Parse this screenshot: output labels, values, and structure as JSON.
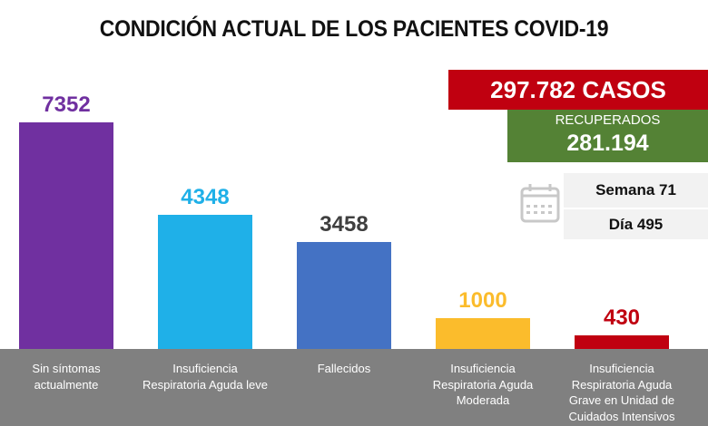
{
  "header": {
    "title": "CONDICIÓN ACTUAL DE LOS PACIENTES COVID-19"
  },
  "summary": {
    "casos": "297.782 CASOS",
    "recuperados_label": "RECUPERADOS",
    "recuperados_value": "281.194",
    "semana": "Semana 71",
    "dia": "Día 495",
    "calendar_icon": "calendar-icon",
    "colors": {
      "casos": "#C00010",
      "recuperados": "#548235",
      "info": "#F2F2F2"
    }
  },
  "chart_data": {
    "type": "bar",
    "title": "CONDICIÓN ACTUAL DE LOS PACIENTES COVID-19",
    "xlabel": "",
    "ylabel": "",
    "ylim": [
      0,
      7352
    ],
    "grid": false,
    "legend": "none",
    "categories": [
      "Sin síntomas actualmente",
      "Insuficiencia Respiratoria Aguda leve",
      "Fallecidos",
      "Insuficiencia Respiratoria Aguda Moderada",
      "Insuficiencia Respiratoria Aguda Grave en Unidad de Cuidados Intensivos"
    ],
    "category_lines": [
      [
        "Sin síntomas",
        "actualmente"
      ],
      [
        "Insuficiencia",
        "Respiratoria Aguda leve"
      ],
      [
        "Fallecidos"
      ],
      [
        "Insuficiencia",
        "Respiratoria Aguda",
        "Moderada"
      ],
      [
        "Insuficiencia",
        "Respiratoria Aguda",
        "Grave en Unidad de",
        "Cuidados Intensivos"
      ]
    ],
    "values": [
      7352,
      4348,
      3458,
      1000,
      430
    ],
    "data_labels": [
      "7352",
      "4348",
      "3458",
      "1000",
      "430"
    ],
    "colors": [
      "#7030A0",
      "#1FB0E8",
      "#4472C4",
      "#FBBC2C",
      "#C00010"
    ],
    "label_colors": [
      "#7030A0",
      "#1FB0E8",
      "#3F3F3F",
      "#FBBC2C",
      "#C00010"
    ]
  }
}
